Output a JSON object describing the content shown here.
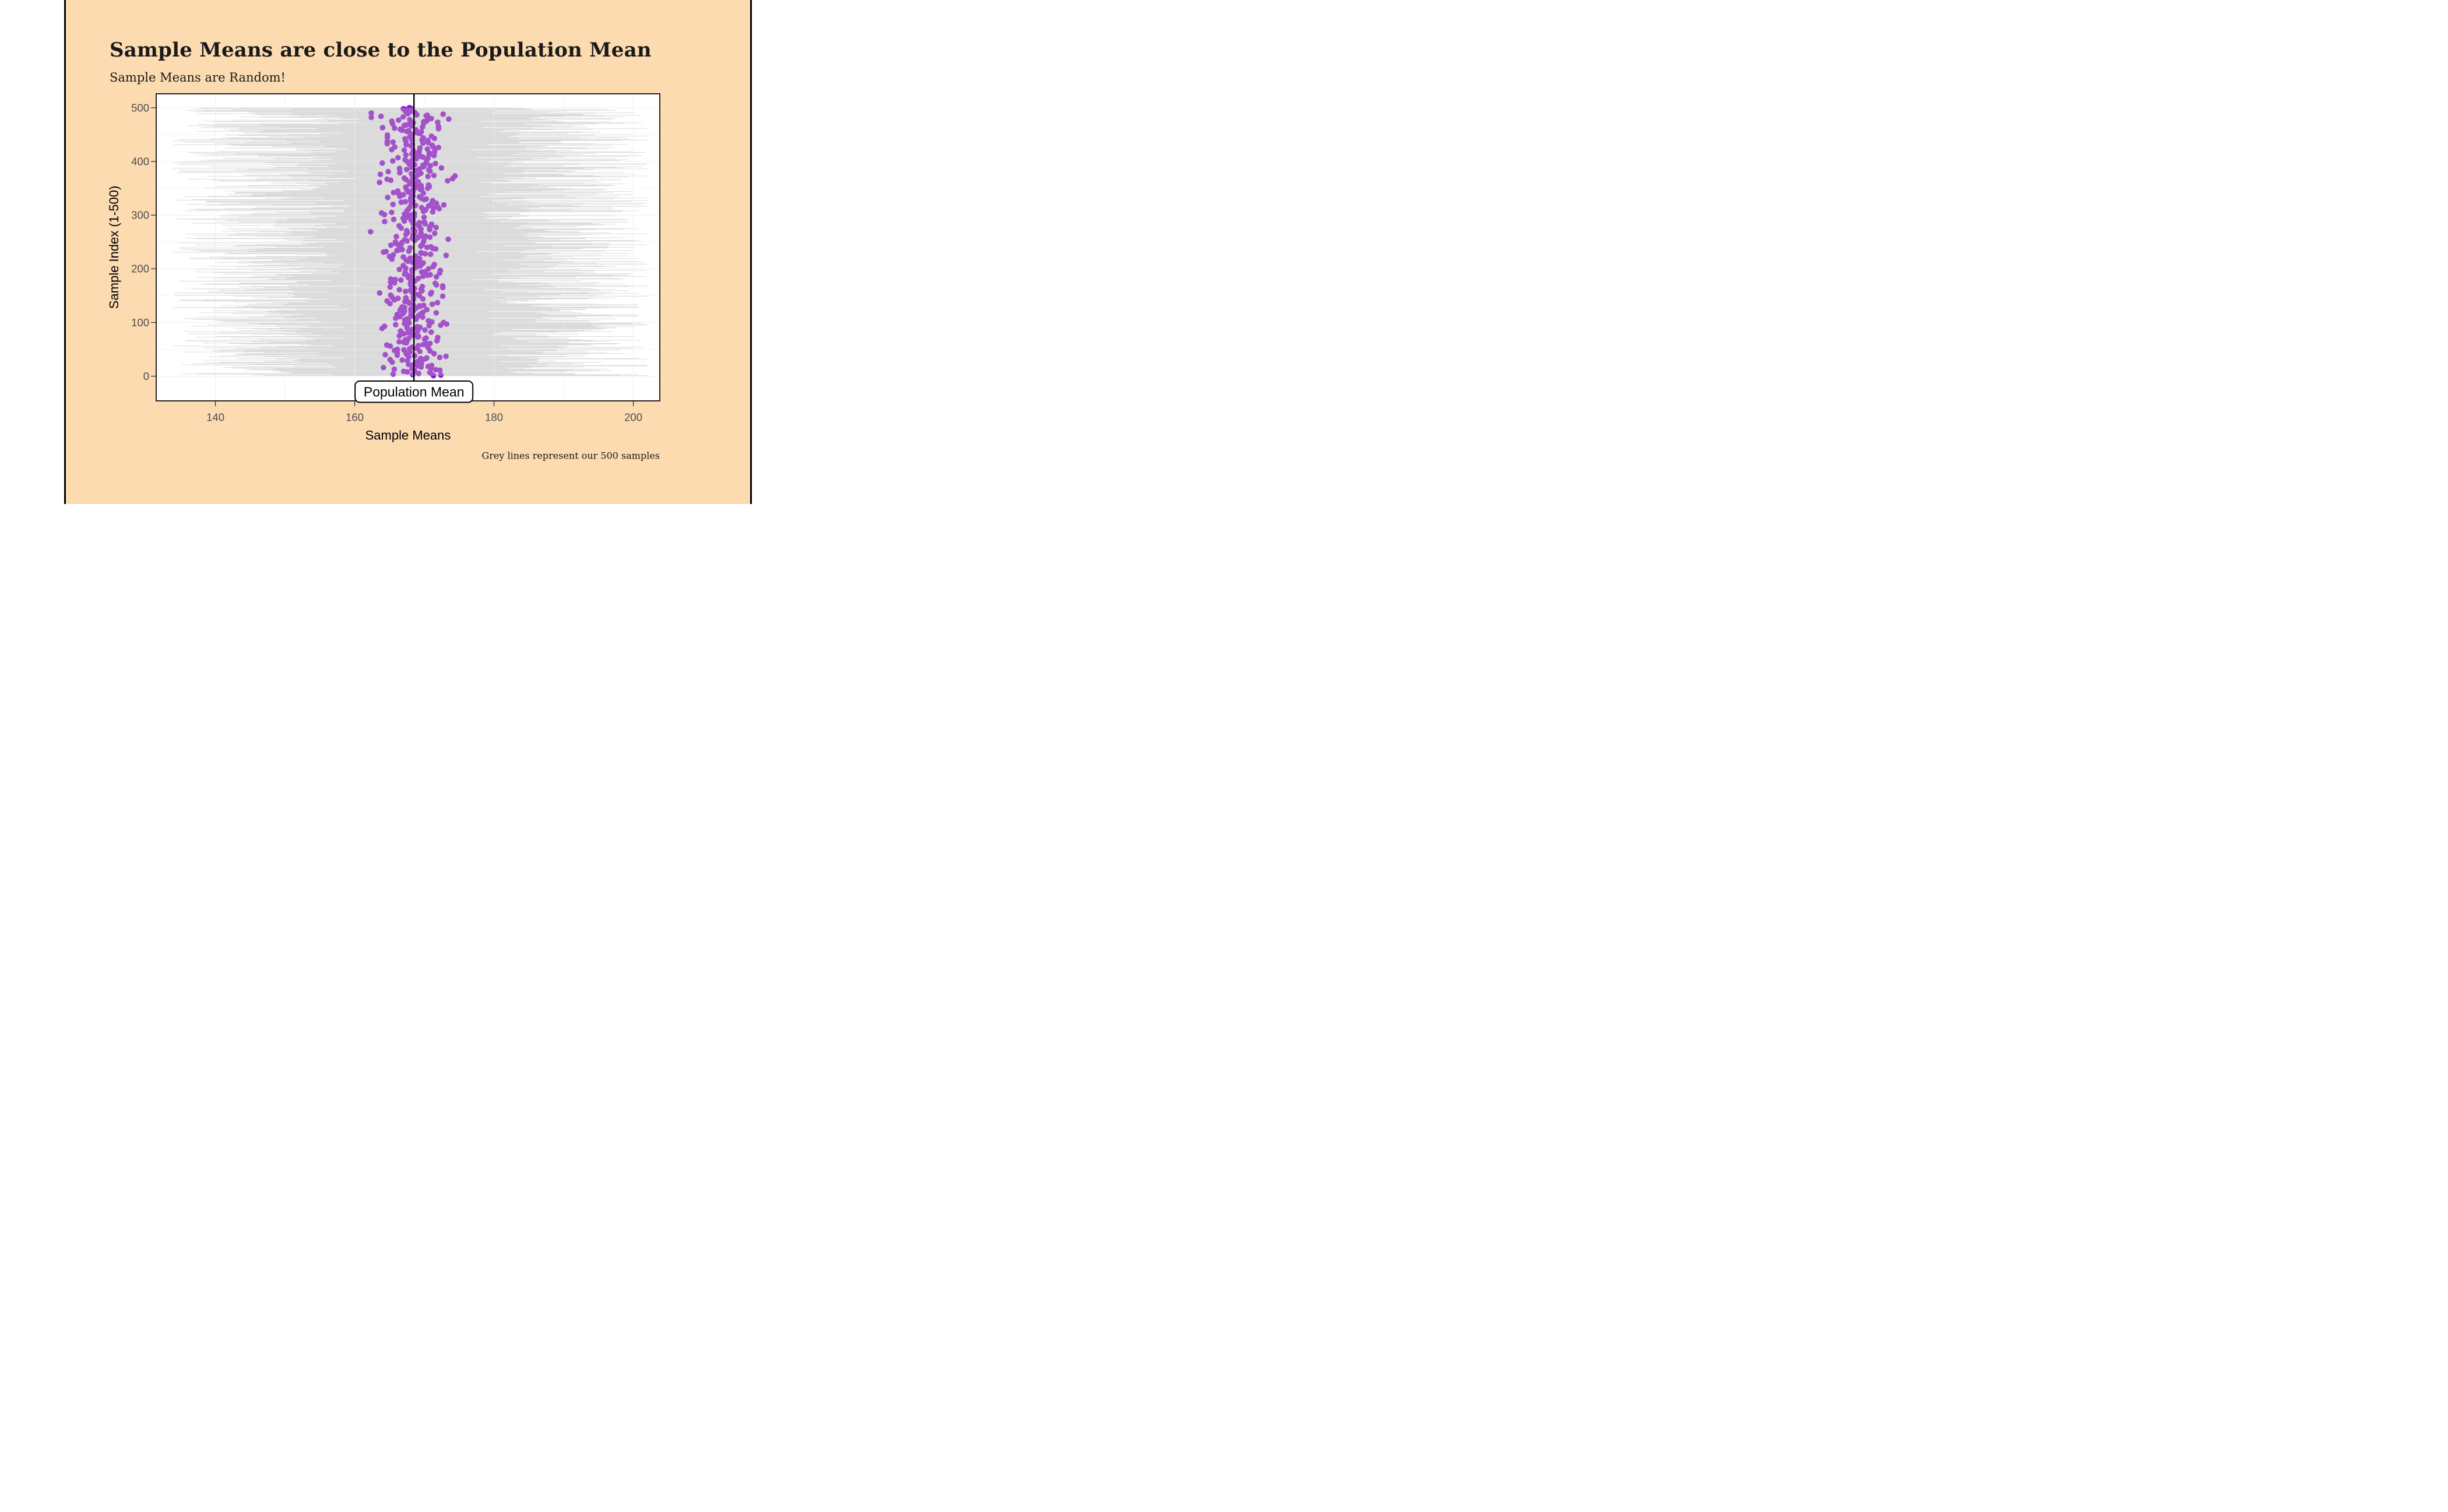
{
  "slide": {
    "title": "Sample Means are close to the Population Mean",
    "subtitle": "Sample Means are Random!"
  },
  "chart_data": {
    "type": "scatter",
    "title": "Sample Means are close to the Population Mean",
    "subtitle": "Sample Means are Random!",
    "caption": "Grey lines represent our 500 samples",
    "xlabel": "Sample Means",
    "ylabel": "Sample Index (1-500)",
    "annotation": "Population Mean",
    "x_ticks": [
      140,
      160,
      180,
      200
    ],
    "x_minor_ticks": [
      150,
      170,
      190
    ],
    "y_ticks": [
      0,
      100,
      200,
      300,
      400,
      500
    ],
    "y_minor_ticks": [
      50,
      150,
      250,
      350,
      450
    ],
    "xlim": [
      131.5,
      203.8
    ],
    "ylim": [
      -46,
      526
    ],
    "grid": true,
    "legend": "none",
    "population_mean": 168.5,
    "samples": {
      "count": 500,
      "mean_center": 168.5,
      "mean_sd": 2.0,
      "mean_range": [
        162,
        176.5
      ],
      "range_halfwidth_min": 11,
      "range_halfwidth_max": 34,
      "seed": 12
    }
  },
  "style": {
    "page_bg": "#ffffff",
    "slide_bg": "#FCDBB1",
    "slide_border": "#000000",
    "panel_bg": "#ffffff",
    "panel_border": "#000000",
    "grid_color": "#E6E6E6",
    "sample_line_color": "#CBCBCB",
    "point_color": "#8A16D8",
    "point_color_muted": "#A452CB",
    "mean_line_color": "#000000",
    "tick_label_color": "#4D4D4D",
    "axis_title_color": "#000000",
    "text_color": "#1A1A1A"
  }
}
